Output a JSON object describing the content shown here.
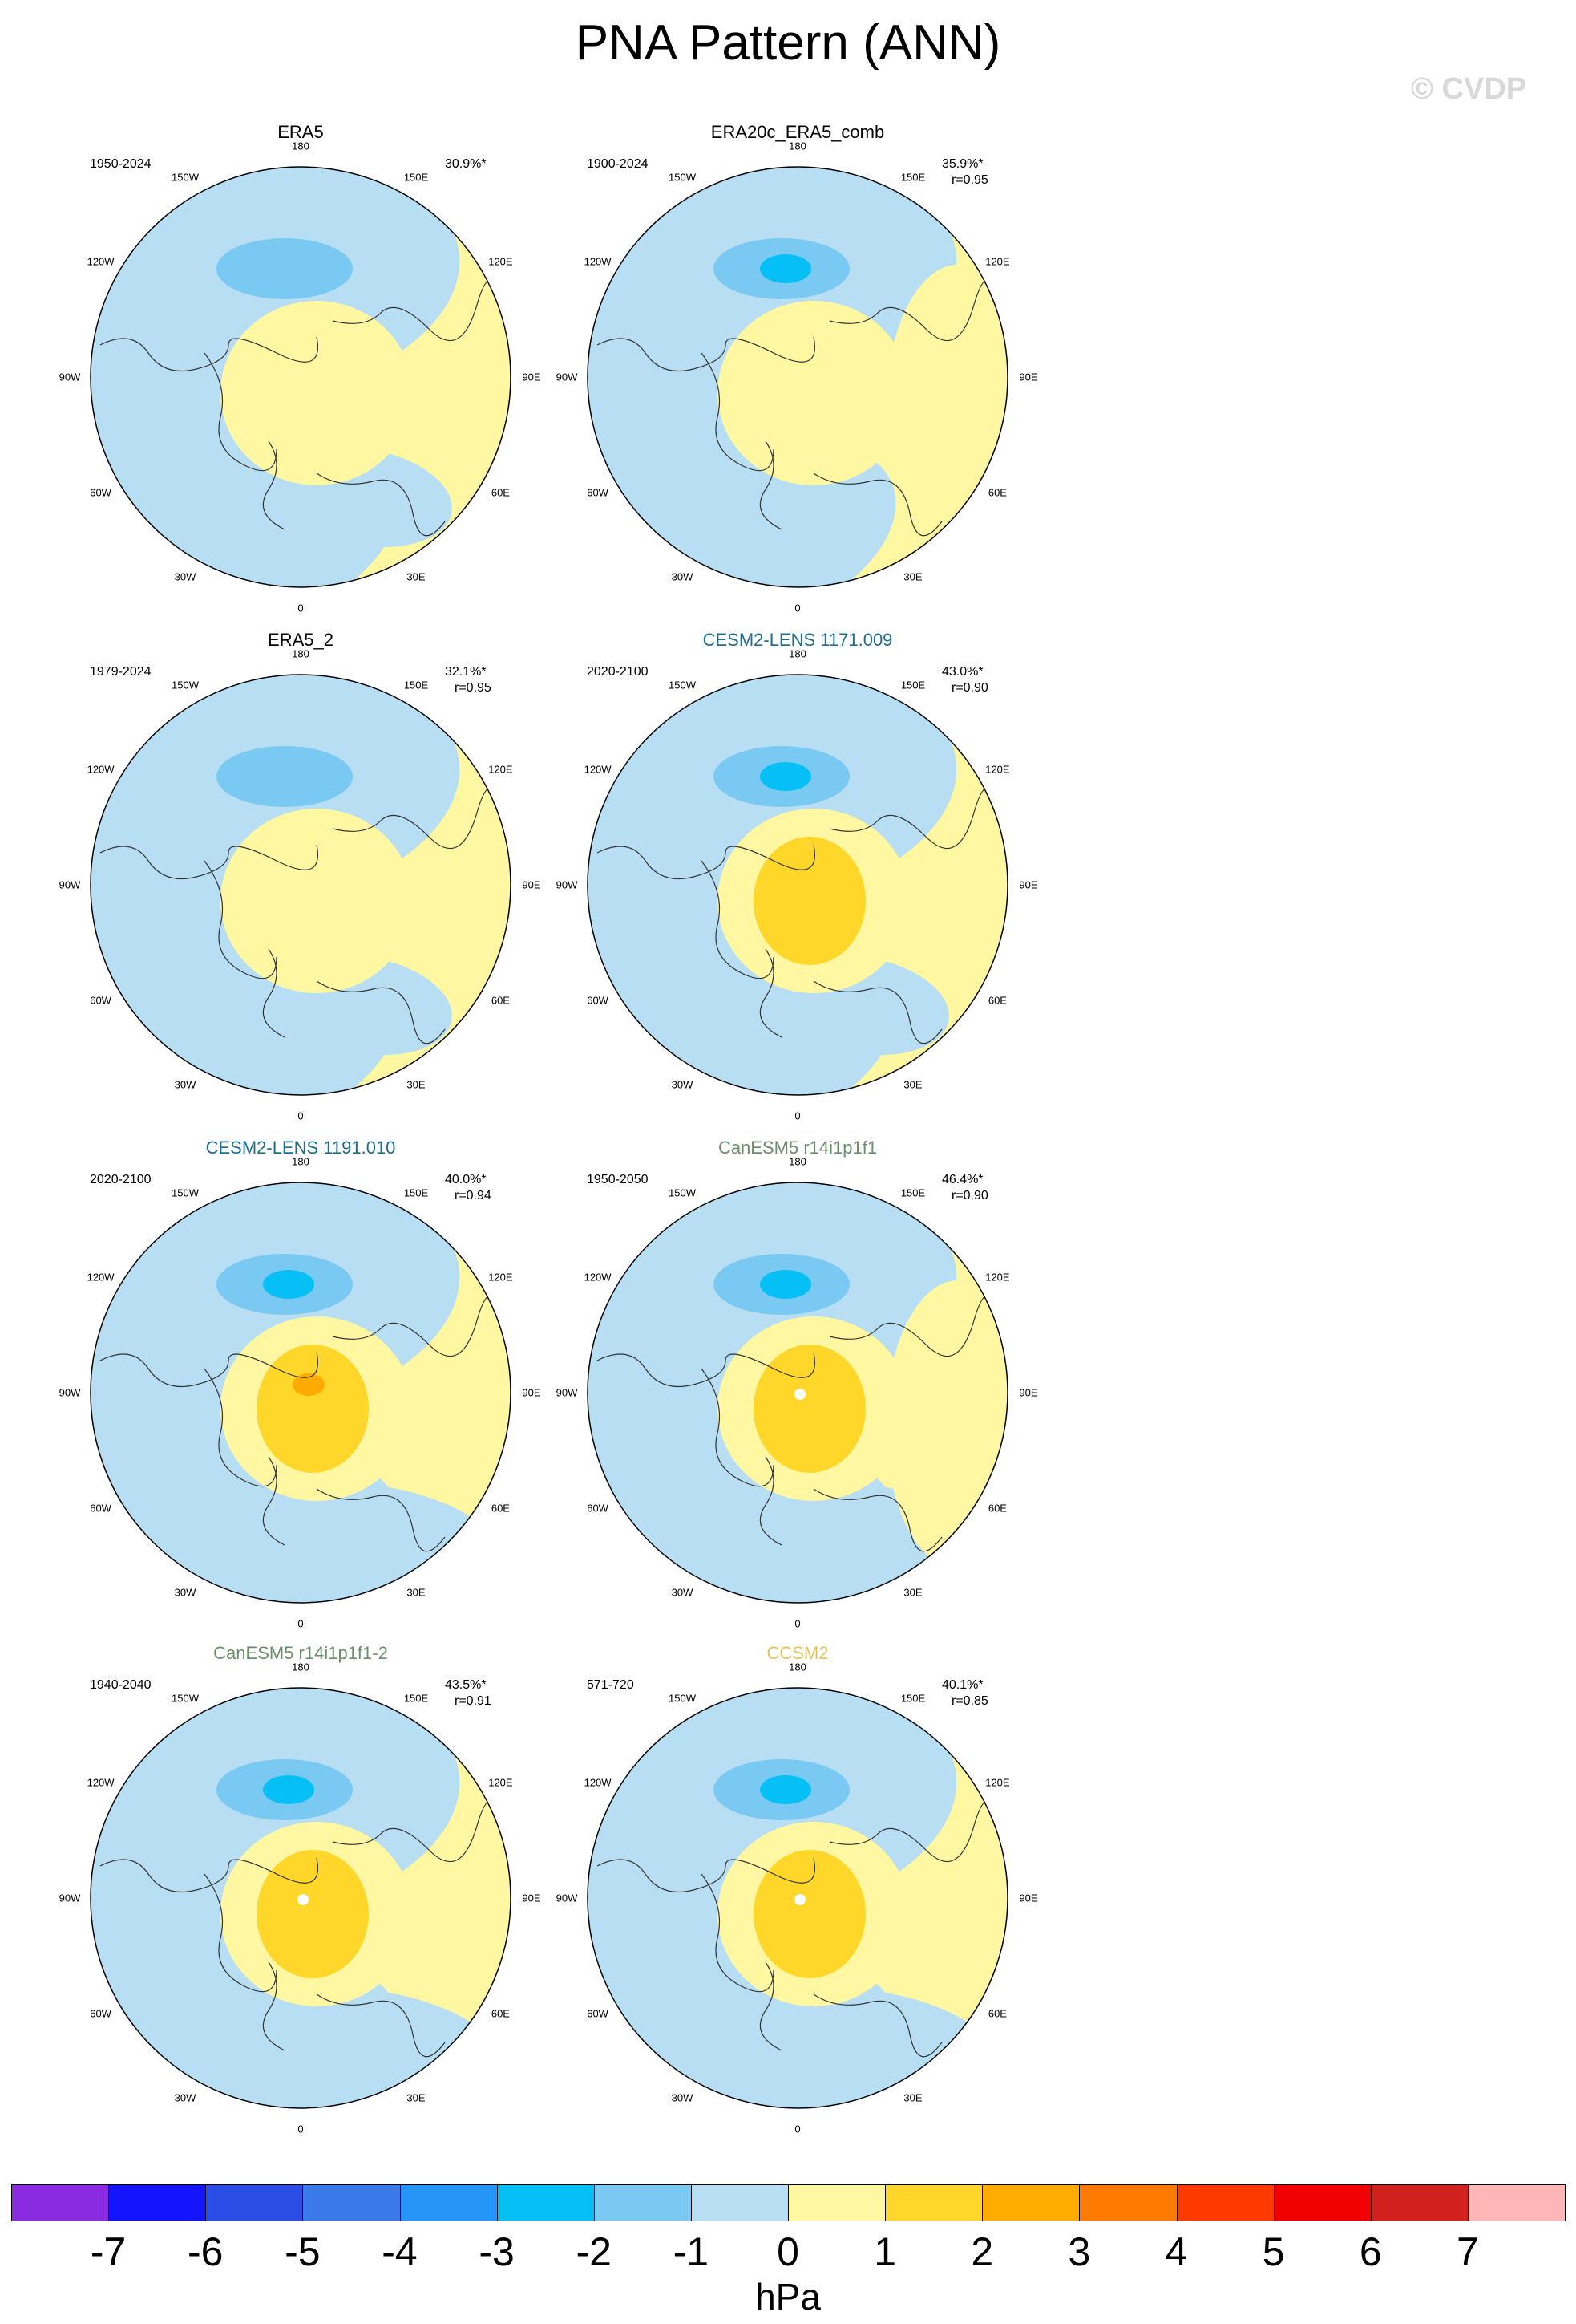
{
  "title": "PNA Pattern (ANN)",
  "watermark": "© CVDP",
  "lon_labels": [
    "180",
    "150E",
    "120E",
    "90E",
    "60E",
    "30E",
    "0",
    "30W",
    "60W",
    "90W",
    "120W",
    "150W"
  ],
  "panels": [
    {
      "title": "ERA5",
      "title_color": "#000000",
      "period": "1950-2024",
      "pct": "30.9%*",
      "corr": "",
      "max_anom": 1
    },
    {
      "title": "ERA20c_ERA5_comb",
      "title_color": "#000000",
      "period": "1900-2024",
      "pct": "35.9%*",
      "corr": "r=0.95",
      "max_anom": 1
    },
    {
      "title": "ERA5_2",
      "title_color": "#000000",
      "period": "1979-2024",
      "pct": "32.1%*",
      "corr": "r=0.95",
      "max_anom": 1
    },
    {
      "title": "CESM2-LENS 1171.009",
      "title_color": "#1f6e8c",
      "period": "2020-2100",
      "pct": "43.0%*",
      "corr": "r=0.90",
      "max_anom": 2
    },
    {
      "title": "CESM2-LENS 1191.010",
      "title_color": "#1f6e8c",
      "period": "2020-2100",
      "pct": "40.0%*",
      "corr": "r=0.94",
      "max_anom": 3
    },
    {
      "title": "CanESM5 r14i1p1f1",
      "title_color": "#6b8e6b",
      "period": "1950-2050",
      "pct": "46.4%*",
      "corr": "r=0.90",
      "max_anom": 2
    },
    {
      "title": "CanESM5 r14i1p1f1-2",
      "title_color": "#6b8e6b",
      "period": "1940-2040",
      "pct": "43.5%*",
      "corr": "r=0.91",
      "max_anom": 2
    },
    {
      "title": "CCSM2",
      "title_color": "#e6c25a",
      "period": "571-720",
      "pct": "40.1%*",
      "corr": "r=0.85",
      "max_anom": 2
    }
  ],
  "colorbar": {
    "colors": [
      "#8a2be2",
      "#1414ff",
      "#2a4de6",
      "#3a7ae8",
      "#2596f7",
      "#06bff5",
      "#7ac9f2",
      "#b7def3",
      "#fff7a1",
      "#ffd62a",
      "#ffab00",
      "#ff7a00",
      "#ff3a00",
      "#f00000",
      "#d2201c",
      "#ffb6b6"
    ],
    "ticks": [
      "-7",
      "-6",
      "-5",
      "-4",
      "-3",
      "-2",
      "-1",
      "0",
      "1",
      "2",
      "3",
      "4",
      "5",
      "6",
      "7"
    ],
    "units": "hPa"
  }
}
